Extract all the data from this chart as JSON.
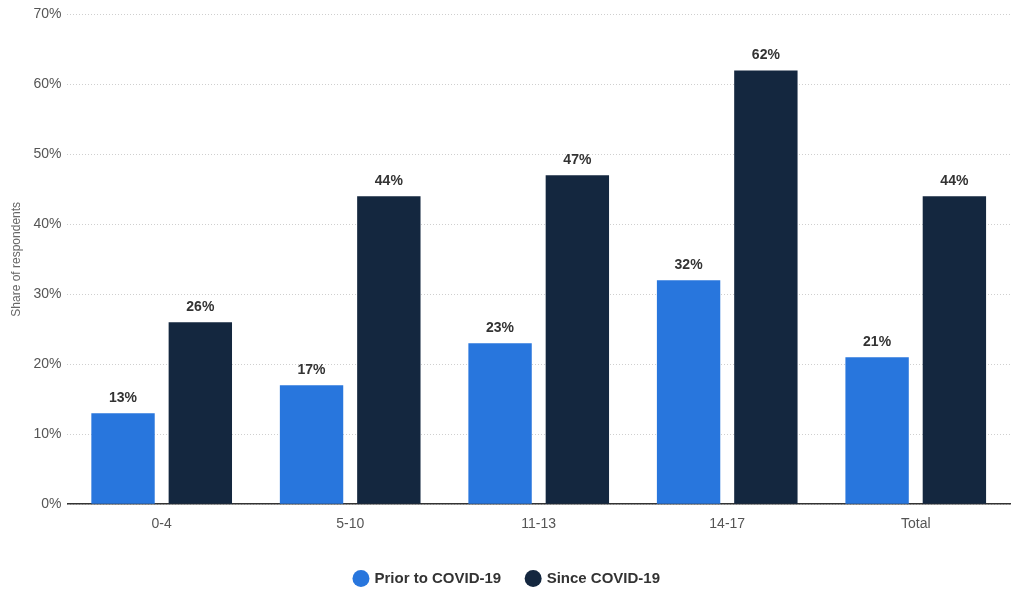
{
  "chart_data": {
    "type": "bar",
    "ylabel": "Share of respondents",
    "categories": [
      "0-4",
      "5-10",
      "11-13",
      "14-17",
      "Total"
    ],
    "series": [
      {
        "name": "Prior to COVID-19",
        "color": "#2876dd",
        "values": [
          13,
          17,
          23,
          32,
          21
        ],
        "value_labels": [
          "13%",
          "17%",
          "23%",
          "32%",
          "21%"
        ]
      },
      {
        "name": "Since COVID-19",
        "color": "#14273f",
        "values": [
          26,
          44,
          47,
          62,
          44
        ],
        "value_labels": [
          "26%",
          "44%",
          "47%",
          "62%",
          "44%"
        ]
      }
    ],
    "ylim": [
      0,
      70
    ],
    "yticks": [
      {
        "value": 0,
        "label": "0%"
      },
      {
        "value": 10,
        "label": "10%"
      },
      {
        "value": 20,
        "label": "20%"
      },
      {
        "value": 30,
        "label": "30%"
      },
      {
        "value": 40,
        "label": "40%"
      },
      {
        "value": 50,
        "label": "50%"
      },
      {
        "value": 60,
        "label": "60%"
      },
      {
        "value": 70,
        "label": "70%"
      }
    ],
    "grid": "y",
    "legend": "bottom"
  }
}
